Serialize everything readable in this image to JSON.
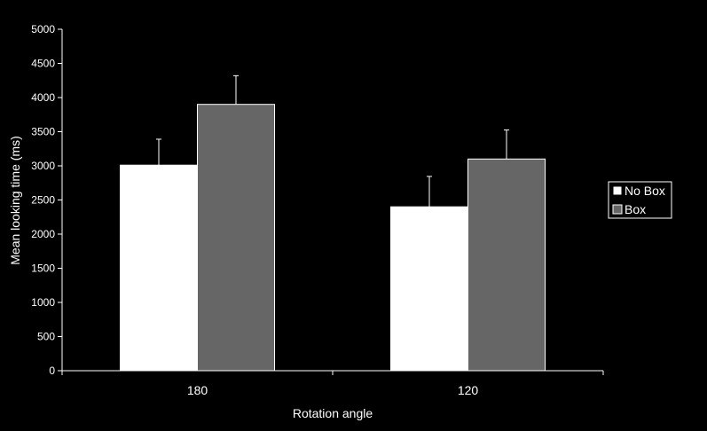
{
  "chart_data": {
    "type": "bar",
    "categories": [
      "180",
      "120"
    ],
    "series": [
      {
        "name": "No Box",
        "values": [
          3010,
          2400
        ],
        "error": [
          380,
          445
        ],
        "color": "#ffffff"
      },
      {
        "name": "Box",
        "values": [
          3900,
          3100
        ],
        "error": [
          420,
          425
        ],
        "color": "#666666"
      }
    ],
    "xlabel": "Rotation angle",
    "ylabel": "Mean looking time (ms)",
    "ylim": [
      0,
      5000
    ],
    "yticks": [
      "0",
      "500",
      "1000",
      "1500",
      "2000",
      "2500",
      "3000",
      "3500",
      "4000",
      "4500",
      "5000"
    ],
    "grid": false,
    "legend_position": "right",
    "background": "#000000",
    "axis_color": "#ffffff"
  }
}
